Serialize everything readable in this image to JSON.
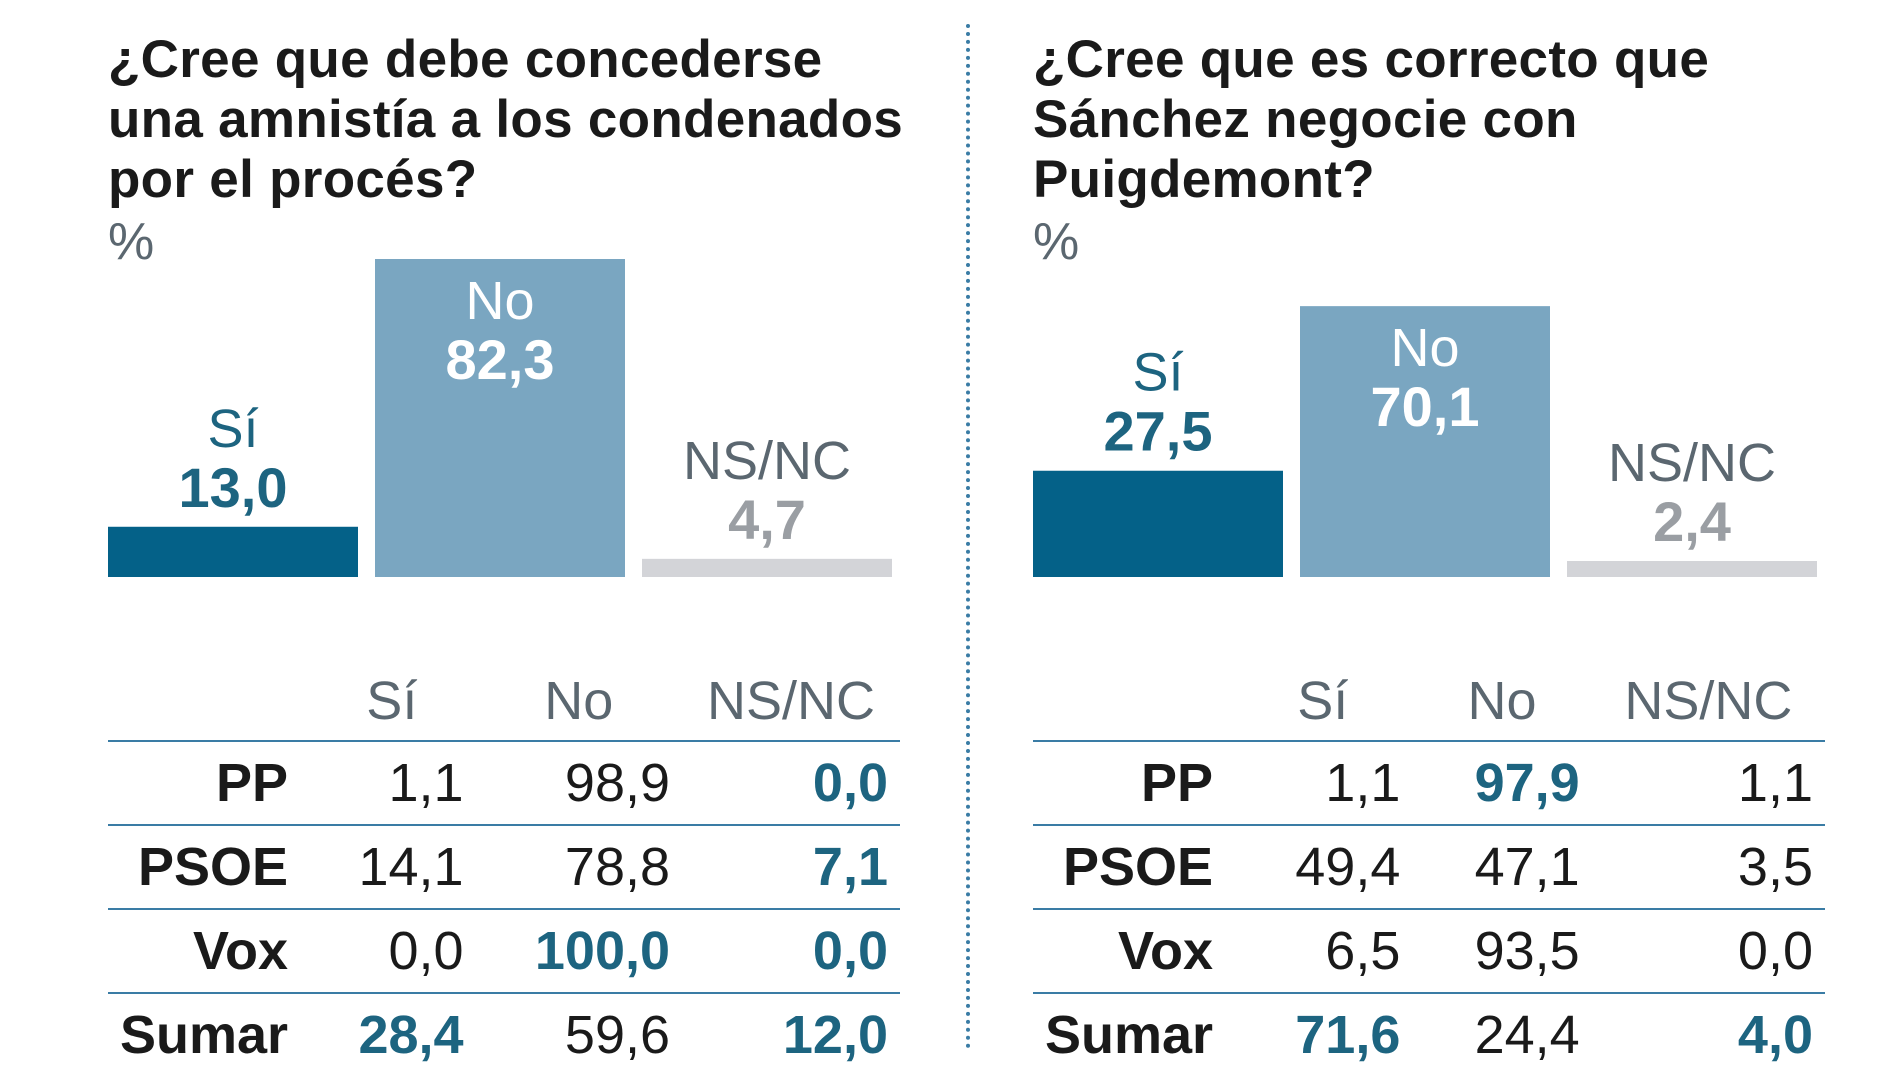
{
  "colors": {
    "si": "#046188",
    "no": "#7aa6c1",
    "nsnc": "#d3d4d8",
    "si_text": "#1d6480",
    "no_text": "#ffffff",
    "nsnc_text": "#9a9ea3",
    "nsnc_label": "#5b6770"
  },
  "chart_data": [
    {
      "type": "bar",
      "title": "¿Cree que debe concederse una amnistía a los condenados por el procés?",
      "unit": "%",
      "categories": [
        "Sí",
        "No",
        "NS/NC"
      ],
      "values": [
        13.0,
        82.3,
        4.7
      ],
      "value_labels": [
        "13,0",
        "82,3",
        "4,7"
      ],
      "ylim": [
        0,
        82.3
      ],
      "table": {
        "headers": [
          "Sí",
          "No",
          "NS/NC"
        ],
        "rows": [
          {
            "party": "PP",
            "values": [
              "1,1",
              "98,9",
              "0,0"
            ],
            "highlight": [
              false,
              false,
              true
            ]
          },
          {
            "party": "PSOE",
            "values": [
              "14,1",
              "78,8",
              "7,1"
            ],
            "highlight": [
              false,
              false,
              true
            ]
          },
          {
            "party": "Vox",
            "values": [
              "0,0",
              "100,0",
              "0,0"
            ],
            "highlight": [
              false,
              true,
              true
            ]
          },
          {
            "party": "Sumar",
            "values": [
              "28,4",
              "59,6",
              "12,0"
            ],
            "highlight": [
              true,
              false,
              true
            ]
          }
        ]
      }
    },
    {
      "type": "bar",
      "title": "¿Cree que es correcto que Sánchez negocie con Puigdemont?",
      "unit": "%",
      "categories": [
        "Sí",
        "No",
        "NS/NC"
      ],
      "values": [
        27.5,
        70.1,
        2.4
      ],
      "value_labels": [
        "27,5",
        "70,1",
        "2,4"
      ],
      "ylim": [
        0,
        82.3
      ],
      "table": {
        "headers": [
          "Sí",
          "No",
          "NS/NC"
        ],
        "rows": [
          {
            "party": "PP",
            "values": [
              "1,1",
              "97,9",
              "1,1"
            ],
            "highlight": [
              false,
              true,
              false
            ]
          },
          {
            "party": "PSOE",
            "values": [
              "49,4",
              "47,1",
              "3,5"
            ],
            "highlight": [
              false,
              false,
              false
            ]
          },
          {
            "party": "Vox",
            "values": [
              "6,5",
              "93,5",
              "0,0"
            ],
            "highlight": [
              false,
              false,
              false
            ]
          },
          {
            "party": "Sumar",
            "values": [
              "71,6",
              "24,4",
              "4,0"
            ],
            "highlight": [
              true,
              false,
              true
            ]
          }
        ]
      }
    }
  ]
}
